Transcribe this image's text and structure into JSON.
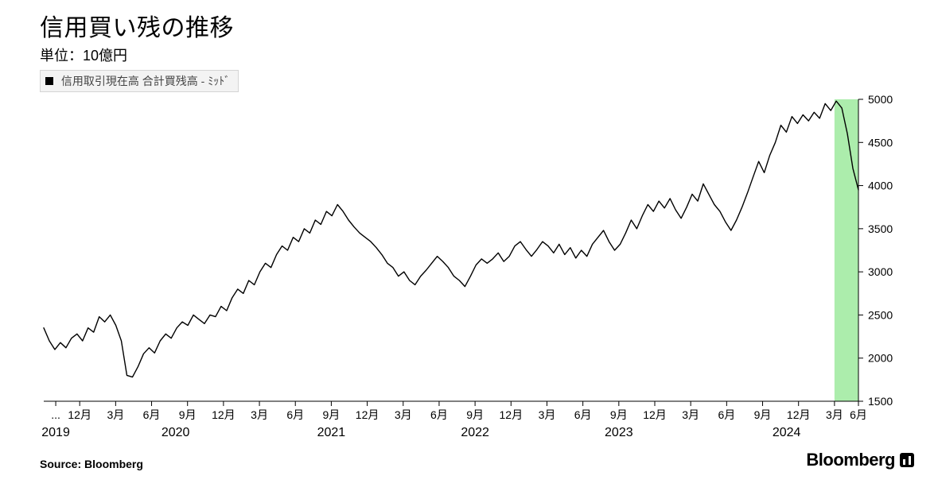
{
  "title": "信用買い残の推移",
  "subtitle": "単位：10億円",
  "legend": {
    "marker_color": "#000000",
    "label": "信用取引現在高 合計買残高 - ﾐｯﾄﾞ"
  },
  "source_label": "Source: Bloomberg",
  "brand": "Bloomberg",
  "chart": {
    "type": "line",
    "background_color": "#ffffff",
    "grid_color": "#e5e5e5",
    "axis_color": "#000000",
    "tick_length": 6,
    "line_color": "#000000",
    "line_width": 1.4,
    "highlight_band": {
      "x_start": 66.0,
      "x_end": 68.0,
      "fill": "#7fe47f",
      "opacity": 0.65
    },
    "ylim": [
      1500,
      5000
    ],
    "yticks": [
      1500,
      2000,
      2500,
      3000,
      3500,
      4000,
      4500,
      5000
    ],
    "x_range": [
      0,
      68
    ],
    "x_month_ticks": [
      {
        "x": 1,
        "label": "..."
      },
      {
        "x": 3,
        "label": "12月"
      },
      {
        "x": 6,
        "label": "3月"
      },
      {
        "x": 9,
        "label": "6月"
      },
      {
        "x": 12,
        "label": "9月"
      },
      {
        "x": 15,
        "label": "12月"
      },
      {
        "x": 18,
        "label": "3月"
      },
      {
        "x": 21,
        "label": "6月"
      },
      {
        "x": 24,
        "label": "9月"
      },
      {
        "x": 27,
        "label": "12月"
      },
      {
        "x": 30,
        "label": "3月"
      },
      {
        "x": 33,
        "label": "6月"
      },
      {
        "x": 36,
        "label": "9月"
      },
      {
        "x": 39,
        "label": "12月"
      },
      {
        "x": 42,
        "label": "3月"
      },
      {
        "x": 45,
        "label": "6月"
      },
      {
        "x": 48,
        "label": "9月"
      },
      {
        "x": 51,
        "label": "12月"
      },
      {
        "x": 54,
        "label": "3月"
      },
      {
        "x": 57,
        "label": "6月"
      },
      {
        "x": 60,
        "label": "9月"
      },
      {
        "x": 63,
        "label": "12月"
      },
      {
        "x": 66,
        "label": "3月"
      },
      {
        "x": 68,
        "label": "6月"
      }
    ],
    "x_year_ticks": [
      {
        "x": 1,
        "label": "2019"
      },
      {
        "x": 11,
        "label": "2020"
      },
      {
        "x": 24,
        "label": "2021"
      },
      {
        "x": 36,
        "label": "2022"
      },
      {
        "x": 48,
        "label": "2023"
      },
      {
        "x": 62,
        "label": "2024"
      }
    ],
    "series": [
      2350,
      2200,
      2100,
      2180,
      2120,
      2230,
      2280,
      2200,
      2350,
      2300,
      2480,
      2420,
      2500,
      2380,
      2200,
      1800,
      1780,
      1900,
      2050,
      2120,
      2060,
      2200,
      2280,
      2230,
      2350,
      2420,
      2380,
      2500,
      2450,
      2400,
      2500,
      2480,
      2600,
      2550,
      2700,
      2800,
      2750,
      2900,
      2850,
      3000,
      3100,
      3050,
      3200,
      3300,
      3250,
      3400,
      3350,
      3500,
      3450,
      3600,
      3550,
      3700,
      3650,
      3780,
      3700,
      3600,
      3520,
      3450,
      3400,
      3350,
      3280,
      3200,
      3100,
      3050,
      2950,
      3000,
      2900,
      2850,
      2950,
      3020,
      3100,
      3180,
      3120,
      3050,
      2950,
      2900,
      2830,
      2950,
      3080,
      3150,
      3100,
      3150,
      3220,
      3120,
      3180,
      3300,
      3350,
      3260,
      3180,
      3260,
      3350,
      3300,
      3220,
      3320,
      3200,
      3280,
      3160,
      3250,
      3180,
      3320,
      3400,
      3480,
      3350,
      3250,
      3320,
      3450,
      3600,
      3500,
      3650,
      3780,
      3700,
      3820,
      3740,
      3850,
      3720,
      3620,
      3750,
      3900,
      3820,
      4020,
      3900,
      3780,
      3700,
      3580,
      3480,
      3600,
      3750,
      3920,
      4100,
      4280,
      4150,
      4350,
      4500,
      4700,
      4620,
      4800,
      4720,
      4820,
      4750,
      4850,
      4780,
      4950,
      4870,
      4980,
      4900,
      4600,
      4200,
      3950
    ]
  }
}
